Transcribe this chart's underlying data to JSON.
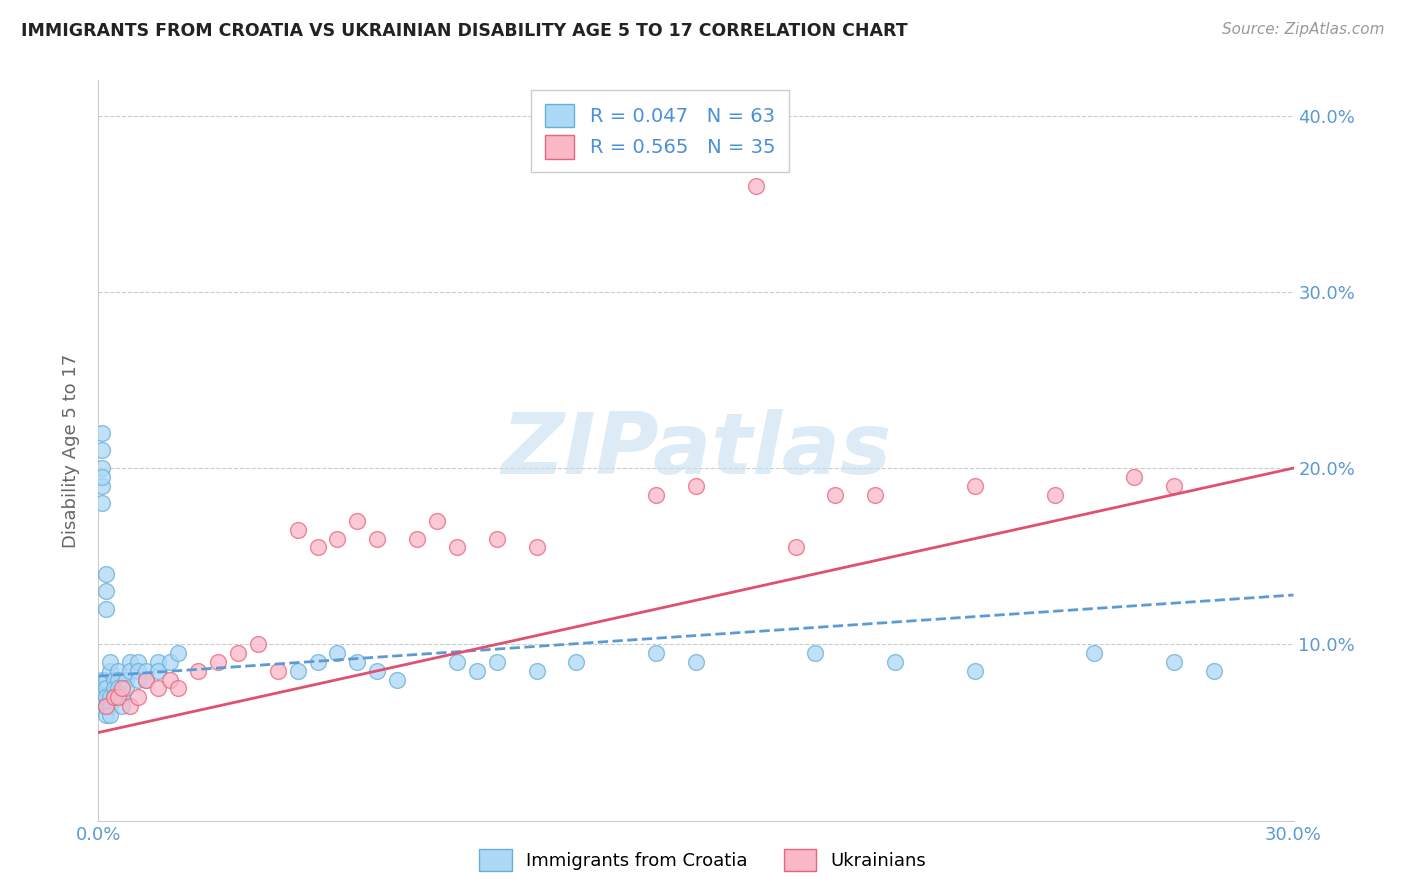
{
  "title": "IMMIGRANTS FROM CROATIA VS UKRAINIAN DISABILITY AGE 5 TO 17 CORRELATION CHART",
  "source": "Source: ZipAtlas.com",
  "ylabel": "Disability Age 5 to 17",
  "xlim": [
    0.0,
    0.3
  ],
  "ylim": [
    0.0,
    0.42
  ],
  "xtick_positions": [
    0.0,
    0.3
  ],
  "xtick_labels": [
    "0.0%",
    "30.0%"
  ],
  "ytick_positions": [
    0.1,
    0.2,
    0.3,
    0.4
  ],
  "ytick_labels": [
    "10.0%",
    "20.0%",
    "30.0%",
    "40.0%"
  ],
  "croatia_R": 0.047,
  "croatia_N": 63,
  "ukraine_R": 0.565,
  "ukraine_N": 35,
  "croatia_color": "#add8f7",
  "ukraine_color": "#f9b8c8",
  "croatia_edge_color": "#6aaed6",
  "ukraine_edge_color": "#e8647a",
  "croatia_line_color": "#5b9bd5",
  "ukraine_line_color": "#e05070",
  "watermark_color": "#d8e8f5",
  "watermark_text": "ZIPatlas",
  "legend_items": [
    {
      "label": "Immigrants from Croatia",
      "color": "#add8f7",
      "edge": "#6aaed6"
    },
    {
      "label": "Ukrainians",
      "color": "#f9b8c8",
      "edge": "#e8647a"
    }
  ],
  "croatia_scatter_x": [
    0.001,
    0.001,
    0.001,
    0.001,
    0.001,
    0.001,
    0.001,
    0.001,
    0.001,
    0.001,
    0.002,
    0.002,
    0.002,
    0.002,
    0.002,
    0.002,
    0.002,
    0.002,
    0.003,
    0.003,
    0.003,
    0.003,
    0.003,
    0.004,
    0.004,
    0.004,
    0.005,
    0.005,
    0.005,
    0.006,
    0.006,
    0.007,
    0.007,
    0.008,
    0.008,
    0.01,
    0.01,
    0.01,
    0.012,
    0.012,
    0.015,
    0.015,
    0.018,
    0.02,
    0.05,
    0.055,
    0.06,
    0.065,
    0.07,
    0.075,
    0.09,
    0.095,
    0.1,
    0.11,
    0.12,
    0.14,
    0.15,
    0.18,
    0.2,
    0.22,
    0.25,
    0.27,
    0.28
  ],
  "croatia_scatter_y": [
    0.2,
    0.21,
    0.19,
    0.18,
    0.22,
    0.195,
    0.075,
    0.08,
    0.07,
    0.065,
    0.14,
    0.13,
    0.12,
    0.08,
    0.075,
    0.07,
    0.065,
    0.06,
    0.085,
    0.09,
    0.07,
    0.065,
    0.06,
    0.08,
    0.075,
    0.07,
    0.085,
    0.08,
    0.075,
    0.07,
    0.065,
    0.08,
    0.075,
    0.09,
    0.085,
    0.09,
    0.085,
    0.08,
    0.085,
    0.08,
    0.09,
    0.085,
    0.09,
    0.095,
    0.085,
    0.09,
    0.095,
    0.09,
    0.085,
    0.08,
    0.09,
    0.085,
    0.09,
    0.085,
    0.09,
    0.095,
    0.09,
    0.095,
    0.09,
    0.085,
    0.095,
    0.09,
    0.085
  ],
  "ukraine_scatter_x": [
    0.002,
    0.004,
    0.005,
    0.006,
    0.008,
    0.01,
    0.012,
    0.015,
    0.018,
    0.02,
    0.025,
    0.03,
    0.035,
    0.04,
    0.045,
    0.05,
    0.055,
    0.06,
    0.065,
    0.07,
    0.08,
    0.085,
    0.09,
    0.1,
    0.11,
    0.14,
    0.15,
    0.185,
    0.195,
    0.22,
    0.24,
    0.26,
    0.27,
    0.165,
    0.175
  ],
  "ukraine_scatter_y": [
    0.065,
    0.07,
    0.07,
    0.075,
    0.065,
    0.07,
    0.08,
    0.075,
    0.08,
    0.075,
    0.085,
    0.09,
    0.095,
    0.1,
    0.085,
    0.165,
    0.155,
    0.16,
    0.17,
    0.16,
    0.16,
    0.17,
    0.155,
    0.16,
    0.155,
    0.185,
    0.19,
    0.185,
    0.185,
    0.19,
    0.185,
    0.195,
    0.19,
    0.36,
    0.155
  ]
}
